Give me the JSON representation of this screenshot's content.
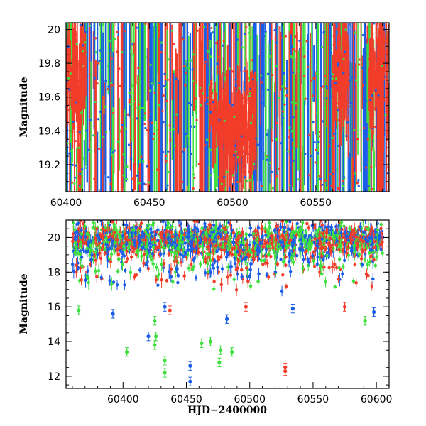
{
  "colors": {
    "blue": "#1a5ee8",
    "green": "#3ee03e",
    "red": "#f23d2b",
    "frame": "#000000"
  },
  "chart_data": [
    {
      "type": "scatter",
      "panel": "top",
      "title": "",
      "xlabel": "",
      "ylabel": "Magnitude",
      "xlim": [
        60400,
        60594
      ],
      "ylim": [
        20.04,
        19.04
      ],
      "y_inverted": true,
      "x_ticks": [
        60400,
        60450,
        60500,
        60550
      ],
      "x_tick_labels": [
        "60400",
        "60450",
        "60500",
        "60550"
      ],
      "y_ticks": [
        19.2,
        19.4,
        19.6,
        19.8,
        20.0
      ],
      "y_tick_labels": [
        "19.2",
        "19.4",
        "19.6",
        "19.8",
        "20"
      ],
      "series": [
        {
          "name": "blue",
          "color": "#1a5ee8"
        },
        {
          "name": "green",
          "color": "#3ee03e"
        },
        {
          "name": "red",
          "color": "#f23d2b"
        }
      ],
      "notes": "zoomed view of dense light curve with error bars; thousands of points"
    },
    {
      "type": "scatter",
      "panel": "bottom",
      "title": "",
      "xlabel": "HJD−2400000",
      "ylabel": "Magnitude",
      "xlim": [
        60355,
        60610
      ],
      "ylim": [
        21.0,
        11.3
      ],
      "y_inverted": true,
      "x_ticks": [
        60400,
        60450,
        60500,
        60550,
        60600
      ],
      "x_tick_labels": [
        "60400",
        "60450",
        "60500",
        "60550",
        "60600"
      ],
      "y_ticks": [
        12,
        14,
        16,
        18,
        20
      ],
      "y_tick_labels": [
        "12",
        "14",
        "16",
        "18",
        "20"
      ],
      "series": [
        {
          "name": "blue",
          "color": "#1a5ee8",
          "outliers": [
            [
              60453,
              11.7
            ],
            [
              60453,
              12.6
            ],
            [
              60420,
              14.3
            ],
            [
              60433,
              16.0
            ],
            [
              60482,
              15.3
            ],
            [
              60534,
              15.9
            ],
            [
              60392,
              15.6
            ],
            [
              60598,
              15.7
            ]
          ]
        },
        {
          "name": "green",
          "color": "#3ee03e",
          "outliers": [
            [
              60433,
              12.2
            ],
            [
              60433,
              12.9
            ],
            [
              60403,
              13.4
            ],
            [
              60425,
              13.8
            ],
            [
              60426,
              14.3
            ],
            [
              60462,
              13.9
            ],
            [
              60469,
              14.0
            ],
            [
              60476,
              12.8
            ],
            [
              60477,
              13.5
            ],
            [
              60486,
              13.4
            ],
            [
              60425,
              15.2
            ],
            [
              60365,
              15.8
            ],
            [
              60591,
              15.2
            ]
          ]
        },
        {
          "name": "red",
          "color": "#f23d2b",
          "outliers": [
            [
              60528,
              12.3
            ],
            [
              60528,
              12.5
            ],
            [
              60437,
              15.8
            ],
            [
              60497,
              16.0
            ],
            [
              60575,
              16.0
            ]
          ]
        }
      ],
      "baseline_mag": 19.9,
      "notes": "full light curve; dense band near mag 19-20.5 with scattered brighter points"
    }
  ]
}
